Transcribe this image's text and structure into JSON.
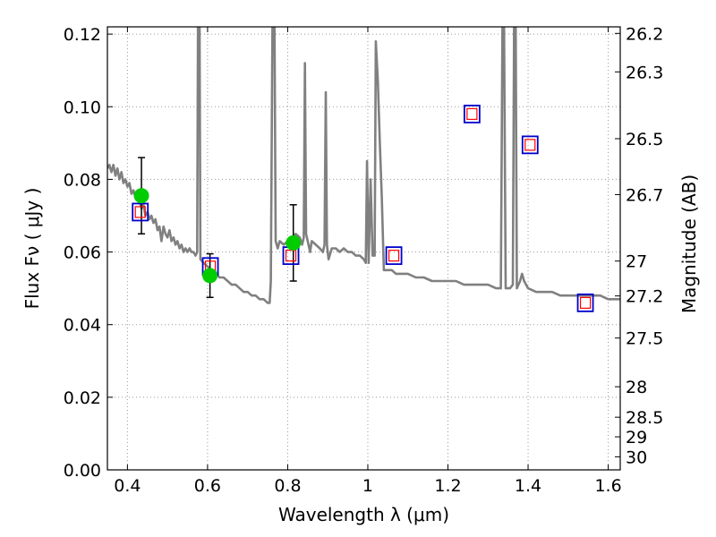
{
  "chart_data": {
    "type": "line",
    "title": "",
    "xlabel": "Wavelength  λ (μm)",
    "ylabel": "Flux  Fν  ( μJy )",
    "ylabel_right": "Magnitude (AB)",
    "xlim": [
      0.35,
      1.63
    ],
    "ylim": [
      0.0,
      0.122
    ],
    "grid": true,
    "grid_style": "dotted",
    "x_ticks": [
      {
        "value": 0.4,
        "label": "0.4"
      },
      {
        "value": 0.6,
        "label": "0.6"
      },
      {
        "value": 0.8,
        "label": "0.8"
      },
      {
        "value": 1.0,
        "label": "1"
      },
      {
        "value": 1.2,
        "label": "1.2"
      },
      {
        "value": 1.4,
        "label": "1.4"
      },
      {
        "value": 1.6,
        "label": "1.6"
      }
    ],
    "y_ticks": [
      {
        "value": 0.0,
        "label": "0.00"
      },
      {
        "value": 0.02,
        "label": "0.02"
      },
      {
        "value": 0.04,
        "label": "0.04"
      },
      {
        "value": 0.06,
        "label": "0.06"
      },
      {
        "value": 0.08,
        "label": "0.08"
      },
      {
        "value": 0.1,
        "label": "0.10"
      },
      {
        "value": 0.12,
        "label": "0.12"
      }
    ],
    "right_ticks": [
      {
        "label": "26.2",
        "flux": 0.1202
      },
      {
        "label": "26.3",
        "flux": 0.1096
      },
      {
        "label": "26.5",
        "flux": 0.0912
      },
      {
        "label": "26.7",
        "flux": 0.0758
      },
      {
        "label": "27",
        "flux": 0.0575
      },
      {
        "label": "27.2",
        "flux": 0.0479
      },
      {
        "label": "27.5",
        "flux": 0.0363
      },
      {
        "label": "28",
        "flux": 0.0229
      },
      {
        "label": "28.5",
        "flux": 0.0145
      },
      {
        "label": "29",
        "flux": 0.0091
      },
      {
        "label": "30",
        "flux": 0.0036
      }
    ],
    "colors": {
      "model": "#808080",
      "box_outer": "#0000cc",
      "box_inner": "#ff0000",
      "observed": "#00cc00",
      "errorbar": "#000000",
      "grid": "#999999"
    },
    "series": [
      {
        "kind": "model_spectrum",
        "points": [
          [
            0.35,
            0.083
          ],
          [
            0.355,
            0.084
          ],
          [
            0.36,
            0.082
          ],
          [
            0.365,
            0.084
          ],
          [
            0.37,
            0.081
          ],
          [
            0.375,
            0.083
          ],
          [
            0.38,
            0.08
          ],
          [
            0.385,
            0.082
          ],
          [
            0.39,
            0.079
          ],
          [
            0.395,
            0.08
          ],
          [
            0.4,
            0.078
          ],
          [
            0.405,
            0.079
          ],
          [
            0.41,
            0.076
          ],
          [
            0.415,
            0.077
          ],
          [
            0.42,
            0.075
          ],
          [
            0.425,
            0.076
          ],
          [
            0.43,
            0.074
          ],
          [
            0.435,
            0.072
          ],
          [
            0.44,
            0.073
          ],
          [
            0.445,
            0.07
          ],
          [
            0.45,
            0.071
          ],
          [
            0.455,
            0.069
          ],
          [
            0.46,
            0.07
          ],
          [
            0.465,
            0.068
          ],
          [
            0.47,
            0.069
          ],
          [
            0.475,
            0.066
          ],
          [
            0.48,
            0.067
          ],
          [
            0.485,
            0.063
          ],
          [
            0.49,
            0.067
          ],
          [
            0.495,
            0.065
          ],
          [
            0.5,
            0.064
          ],
          [
            0.505,
            0.066
          ],
          [
            0.51,
            0.063
          ],
          [
            0.515,
            0.064
          ],
          [
            0.52,
            0.062
          ],
          [
            0.525,
            0.063
          ],
          [
            0.53,
            0.061
          ],
          [
            0.535,
            0.062
          ],
          [
            0.54,
            0.06
          ],
          [
            0.545,
            0.061
          ],
          [
            0.55,
            0.06
          ],
          [
            0.555,
            0.061
          ],
          [
            0.56,
            0.06
          ],
          [
            0.565,
            0.06
          ],
          [
            0.57,
            0.059
          ],
          [
            0.574,
            0.06
          ],
          [
            0.576,
            0.122
          ],
          [
            0.58,
            0.122
          ],
          [
            0.582,
            0.058
          ],
          [
            0.59,
            0.057
          ],
          [
            0.6,
            0.056
          ],
          [
            0.61,
            0.055
          ],
          [
            0.62,
            0.054
          ],
          [
            0.63,
            0.053
          ],
          [
            0.64,
            0.053
          ],
          [
            0.65,
            0.052
          ],
          [
            0.66,
            0.051
          ],
          [
            0.67,
            0.051
          ],
          [
            0.68,
            0.05
          ],
          [
            0.69,
            0.049
          ],
          [
            0.7,
            0.049
          ],
          [
            0.71,
            0.048
          ],
          [
            0.72,
            0.048
          ],
          [
            0.73,
            0.047
          ],
          [
            0.74,
            0.047
          ],
          [
            0.75,
            0.046
          ],
          [
            0.755,
            0.046
          ],
          [
            0.758,
            0.052
          ],
          [
            0.762,
            0.122
          ],
          [
            0.767,
            0.122
          ],
          [
            0.77,
            0.063
          ],
          [
            0.775,
            0.061
          ],
          [
            0.78,
            0.063
          ],
          [
            0.79,
            0.062
          ],
          [
            0.8,
            0.063
          ],
          [
            0.81,
            0.064
          ],
          [
            0.82,
            0.065
          ],
          [
            0.83,
            0.064
          ],
          [
            0.836,
            0.062
          ],
          [
            0.84,
            0.064
          ],
          [
            0.843,
            0.112
          ],
          [
            0.846,
            0.065
          ],
          [
            0.85,
            0.063
          ],
          [
            0.856,
            0.06
          ],
          [
            0.86,
            0.063
          ],
          [
            0.87,
            0.062
          ],
          [
            0.88,
            0.061
          ],
          [
            0.888,
            0.06
          ],
          [
            0.892,
            0.062
          ],
          [
            0.895,
            0.104
          ],
          [
            0.898,
            0.062
          ],
          [
            0.902,
            0.058
          ],
          [
            0.91,
            0.061
          ],
          [
            0.92,
            0.061
          ],
          [
            0.93,
            0.06
          ],
          [
            0.94,
            0.061
          ],
          [
            0.95,
            0.06
          ],
          [
            0.96,
            0.06
          ],
          [
            0.97,
            0.059
          ],
          [
            0.98,
            0.059
          ],
          [
            0.99,
            0.058
          ],
          [
            0.995,
            0.057
          ],
          [
            0.998,
            0.085
          ],
          [
            1.002,
            0.057
          ],
          [
            1.007,
            0.08
          ],
          [
            1.012,
            0.059
          ],
          [
            1.017,
            0.059
          ],
          [
            1.02,
            0.118
          ],
          [
            1.025,
            0.107
          ],
          [
            1.03,
            0.09
          ],
          [
            1.035,
            0.075
          ],
          [
            1.04,
            0.055
          ],
          [
            1.05,
            0.055
          ],
          [
            1.06,
            0.055
          ],
          [
            1.07,
            0.054
          ],
          [
            1.08,
            0.054
          ],
          [
            1.09,
            0.054
          ],
          [
            1.1,
            0.054
          ],
          [
            1.12,
            0.053
          ],
          [
            1.14,
            0.053
          ],
          [
            1.16,
            0.052
          ],
          [
            1.18,
            0.052
          ],
          [
            1.2,
            0.052
          ],
          [
            1.22,
            0.052
          ],
          [
            1.24,
            0.051
          ],
          [
            1.26,
            0.051
          ],
          [
            1.28,
            0.051
          ],
          [
            1.3,
            0.051
          ],
          [
            1.32,
            0.05
          ],
          [
            1.332,
            0.05
          ],
          [
            1.336,
            0.122
          ],
          [
            1.34,
            0.122
          ],
          [
            1.344,
            0.05
          ],
          [
            1.355,
            0.05
          ],
          [
            1.362,
            0.051
          ],
          [
            1.365,
            0.122
          ],
          [
            1.369,
            0.122
          ],
          [
            1.372,
            0.05
          ],
          [
            1.38,
            0.052
          ],
          [
            1.385,
            0.054
          ],
          [
            1.39,
            0.052
          ],
          [
            1.4,
            0.05
          ],
          [
            1.42,
            0.049
          ],
          [
            1.44,
            0.049
          ],
          [
            1.46,
            0.049
          ],
          [
            1.48,
            0.048
          ],
          [
            1.5,
            0.048
          ],
          [
            1.52,
            0.048
          ],
          [
            1.54,
            0.048
          ],
          [
            1.56,
            0.048
          ],
          [
            1.58,
            0.048
          ],
          [
            1.6,
            0.047
          ],
          [
            1.63,
            0.047
          ]
        ]
      },
      {
        "kind": "model_band_flux",
        "marker": "double-square",
        "points": [
          {
            "x": 0.432,
            "y": 0.071
          },
          {
            "x": 0.607,
            "y": 0.056
          },
          {
            "x": 0.808,
            "y": 0.059
          },
          {
            "x": 1.065,
            "y": 0.059
          },
          {
            "x": 1.26,
            "y": 0.098
          },
          {
            "x": 1.405,
            "y": 0.0895
          },
          {
            "x": 1.543,
            "y": 0.046
          }
        ]
      },
      {
        "kind": "observed",
        "marker": "circle",
        "points": [
          {
            "x": 0.435,
            "y": 0.0755,
            "y_low": 0.065,
            "y_high": 0.086
          },
          {
            "x": 0.606,
            "y": 0.0535,
            "y_low": 0.0475,
            "y_high": 0.0595
          },
          {
            "x": 0.814,
            "y": 0.0625,
            "y_low": 0.052,
            "y_high": 0.073
          }
        ]
      }
    ]
  }
}
